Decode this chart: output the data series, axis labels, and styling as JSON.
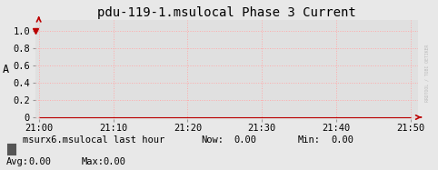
{
  "title": "pdu-119-1.msulocal Phase 3 Current",
  "ylabel": "A",
  "bg_color": "#e8e8e8",
  "plot_bg_color": "#e0e0e0",
  "grid_color": "#ffaaaa",
  "axis_color": "#bb0000",
  "ytick_vals": [
    0.0,
    0.2,
    0.4,
    0.6,
    0.8,
    1.0
  ],
  "ytick_labels": [
    "0",
    "0.2",
    "0.4",
    "0.6",
    "0.8",
    "1.0"
  ],
  "ylim": [
    -0.02,
    1.12
  ],
  "xtick_labels": [
    "21:00",
    "21:10",
    "21:20",
    "21:30",
    "21:40",
    "21:50"
  ],
  "legend_label": "msurx6.msulocal last hour",
  "legend_box_color": "#555555",
  "text_color": "#000000",
  "now_label": "Now:",
  "now_val": "0.00",
  "min_label": "Min:",
  "min_val": "0.00",
  "avg_label": "Avg:",
  "avg_val": "0.00",
  "max_label": "Max:",
  "max_val": "0.00",
  "title_fontsize": 10,
  "tick_fontsize": 7.5,
  "legend_fontsize": 7.5,
  "font_family": "monospace",
  "watermark": "RRDTOOL / TOBI OETIKER"
}
